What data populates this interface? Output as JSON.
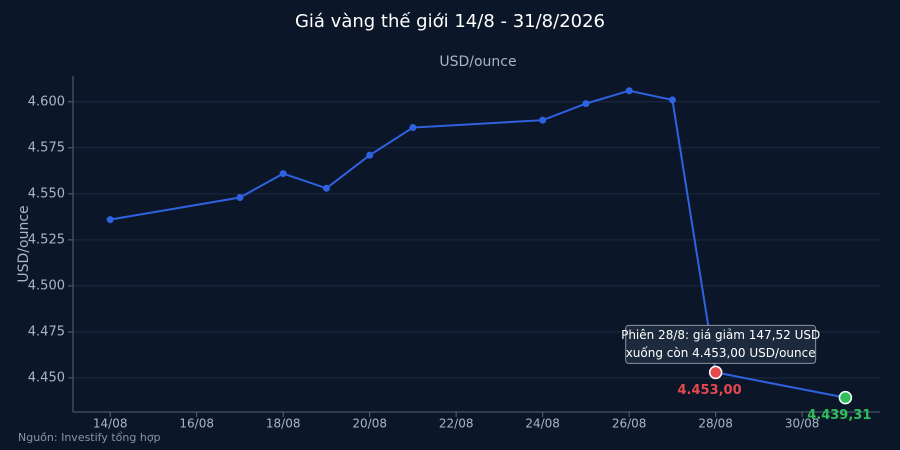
{
  "chart_data": {
    "type": "line",
    "title": "Giá vàng thế giới 14/8 - 31/8/2026",
    "subtitle": "USD/ounce",
    "y_label": "USD/ounce",
    "source": "Nguồn: Investify tổng hợp",
    "x": [
      14,
      17,
      18,
      19,
      20,
      21,
      24,
      25,
      26,
      27,
      28,
      31
    ],
    "series": [
      {
        "name": "Giá vàng",
        "color": "#2f62e0",
        "values": [
          4.536,
          4.548,
          4.561,
          4.553,
          4.571,
          4.586,
          4.59,
          4.599,
          4.606,
          4.601,
          4.453,
          4.43931
        ],
        "value_labels": [
          null,
          null,
          null,
          null,
          null,
          null,
          null,
          null,
          null,
          null,
          "4.453,00",
          "4.439,31"
        ],
        "value_label_colors": [
          null,
          null,
          null,
          null,
          null,
          null,
          null,
          null,
          null,
          null,
          "#e5484d",
          "#2fbf5a"
        ]
      }
    ],
    "annotation": {
      "index": 10,
      "lines": [
        "Phiên 28/8: giá giảm 147,52 USD",
        "xuống còn 4.453,00 USD/ounce"
      ]
    },
    "xlim": [
      13.14,
      31.8
    ],
    "xticks": [
      {
        "value": 14,
        "label": "14/08"
      },
      {
        "value": 16,
        "label": "16/08"
      },
      {
        "value": 18,
        "label": "18/08"
      },
      {
        "value": 20,
        "label": "20/08"
      },
      {
        "value": 22,
        "label": "22/08"
      },
      {
        "value": 24,
        "label": "24/08"
      },
      {
        "value": 26,
        "label": "26/08"
      },
      {
        "value": 28,
        "label": "28/08"
      },
      {
        "value": 30,
        "label": "30/08"
      }
    ],
    "ylim": [
      4.4315,
      4.614
    ],
    "yticks": [
      {
        "value": 4.45,
        "label": "4.450"
      },
      {
        "value": 4.475,
        "label": "4.475"
      },
      {
        "value": 4.5,
        "label": "4.500"
      },
      {
        "value": 4.525,
        "label": "4.525"
      },
      {
        "value": 4.55,
        "label": "4.550"
      },
      {
        "value": 4.575,
        "label": "4.575"
      },
      {
        "value": 4.6,
        "label": "4.600"
      }
    ],
    "grid": true
  }
}
